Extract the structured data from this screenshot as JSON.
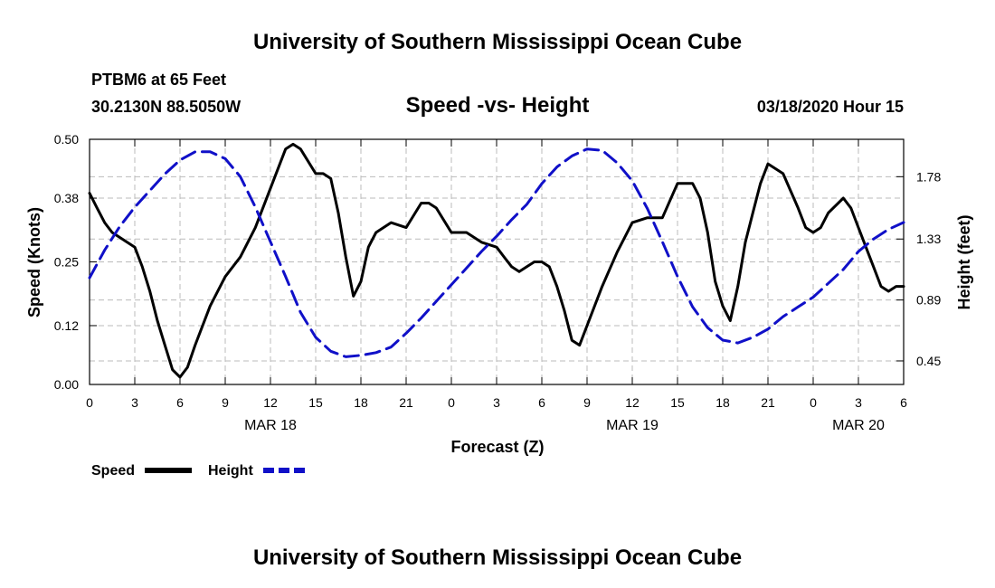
{
  "header": {
    "title": "University of Southern Mississippi Ocean Cube",
    "station": "PTBM6 at 65 Feet",
    "coords": "30.2130N 88.5050W",
    "date": "03/18/2020 Hour 15"
  },
  "footer": {
    "title": "University of Southern Mississippi Ocean Cube"
  },
  "colors": {
    "speed": "#000000",
    "height": "#1010c8",
    "grid": "#bbbbbb"
  },
  "chart_data": {
    "type": "line",
    "title": "Speed -vs- Height",
    "xlabel": "Forecast (Z)",
    "ylabel": "Speed (Knots)",
    "y2label": "Height (feet)",
    "xlim": [
      0,
      54
    ],
    "ylim": [
      0,
      0.5
    ],
    "y2lim": [
      0.28,
      2.05
    ],
    "x_tick_values": [
      0,
      3,
      6,
      9,
      12,
      15,
      18,
      21,
      24,
      27,
      30,
      33,
      36,
      39,
      42,
      45,
      48,
      51,
      54
    ],
    "x_tick_labels": [
      "0",
      "3",
      "6",
      "9",
      "12",
      "15",
      "18",
      "21",
      "0",
      "3",
      "6",
      "9",
      "12",
      "15",
      "18",
      "21",
      "0",
      "3",
      "6"
    ],
    "date_labels": [
      {
        "label": "MAR 18",
        "x": 12
      },
      {
        "label": "MAR 19",
        "x": 36
      },
      {
        "label": "MAR 20",
        "x": 51
      }
    ],
    "y_ticks": [
      0.0,
      0.12,
      0.25,
      0.38,
      0.5
    ],
    "y_tick_labels": [
      "0.00",
      "0.12",
      "0.25",
      "0.38",
      "0.50"
    ],
    "y2_ticks": [
      0.45,
      0.89,
      1.33,
      1.78
    ],
    "y2_tick_labels": [
      "0.45",
      "0.89",
      "1.33",
      "1.78"
    ],
    "legend": [
      {
        "name": "Speed",
        "style": "solid"
      },
      {
        "name": "Height",
        "style": "dashed"
      }
    ],
    "series": [
      {
        "name": "Speed",
        "axis": "left",
        "style": "solid",
        "x": [
          0,
          0.5,
          1,
          1.5,
          2,
          3,
          3.5,
          4,
          4.5,
          5,
          5.5,
          6,
          6.5,
          7,
          8,
          9,
          10,
          11,
          12,
          13,
          13.5,
          14,
          15,
          15.5,
          16,
          16.5,
          17,
          17.5,
          18,
          18.5,
          19,
          20,
          21,
          22,
          22.5,
          23,
          24,
          25,
          26,
          27,
          27.5,
          28,
          28.5,
          29,
          29.5,
          30,
          30.5,
          31,
          31.5,
          32,
          32.5,
          33,
          34,
          35,
          36,
          37,
          38,
          39,
          40,
          40.5,
          41,
          41.5,
          42,
          42.5,
          43,
          43.5,
          44,
          44.5,
          45,
          46,
          47,
          47.5,
          48,
          48.5,
          49,
          50,
          50.5,
          51,
          52,
          52.5,
          53,
          53.5,
          54
        ],
        "values": [
          0.39,
          0.36,
          0.33,
          0.31,
          0.3,
          0.28,
          0.24,
          0.19,
          0.13,
          0.08,
          0.03,
          0.015,
          0.035,
          0.08,
          0.16,
          0.22,
          0.26,
          0.32,
          0.4,
          0.48,
          0.49,
          0.48,
          0.43,
          0.43,
          0.42,
          0.35,
          0.26,
          0.18,
          0.21,
          0.28,
          0.31,
          0.33,
          0.32,
          0.37,
          0.37,
          0.36,
          0.31,
          0.31,
          0.29,
          0.28,
          0.26,
          0.24,
          0.23,
          0.24,
          0.25,
          0.25,
          0.24,
          0.2,
          0.15,
          0.09,
          0.08,
          0.12,
          0.2,
          0.27,
          0.33,
          0.34,
          0.34,
          0.41,
          0.41,
          0.38,
          0.31,
          0.21,
          0.16,
          0.13,
          0.2,
          0.29,
          0.35,
          0.41,
          0.45,
          0.43,
          0.36,
          0.32,
          0.31,
          0.32,
          0.35,
          0.38,
          0.36,
          0.32,
          0.24,
          0.2,
          0.19,
          0.2,
          0.2
        ]
      },
      {
        "name": "Height",
        "axis": "right",
        "style": "dashed",
        "x": [
          0,
          1,
          2,
          3,
          4,
          5,
          6,
          7,
          8,
          9,
          10,
          11,
          12,
          13,
          14,
          15,
          16,
          17,
          18,
          19,
          20,
          21,
          22,
          23,
          24,
          25,
          26,
          27,
          28,
          29,
          30,
          31,
          32,
          33,
          34,
          35,
          36,
          37,
          38,
          39,
          40,
          41,
          42,
          43,
          44,
          45,
          46,
          47,
          48,
          49,
          50,
          51,
          52,
          53,
          54
        ],
        "values": [
          1.05,
          1.25,
          1.42,
          1.56,
          1.68,
          1.8,
          1.9,
          1.96,
          1.96,
          1.91,
          1.78,
          1.56,
          1.31,
          1.06,
          0.8,
          0.62,
          0.52,
          0.48,
          0.49,
          0.51,
          0.55,
          0.65,
          0.76,
          0.88,
          1.0,
          1.12,
          1.24,
          1.35,
          1.47,
          1.58,
          1.73,
          1.85,
          1.93,
          1.98,
          1.97,
          1.88,
          1.75,
          1.55,
          1.31,
          1.06,
          0.84,
          0.69,
          0.6,
          0.58,
          0.62,
          0.68,
          0.77,
          0.84,
          0.91,
          1.01,
          1.11,
          1.24,
          1.33,
          1.4,
          1.45
        ]
      }
    ]
  }
}
